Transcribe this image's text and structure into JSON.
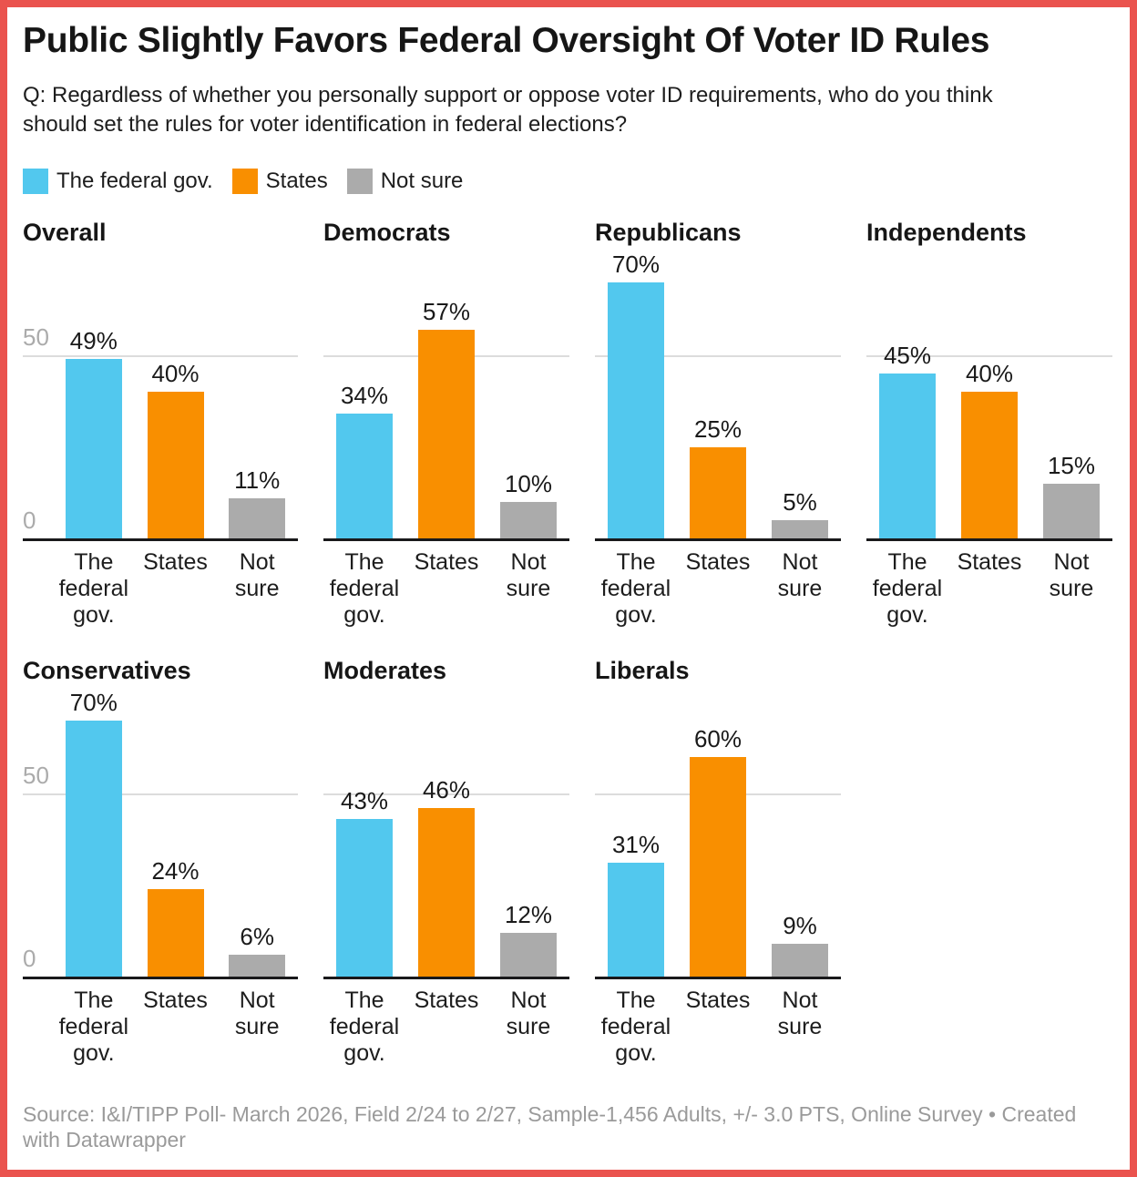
{
  "frame": {
    "border_color": "#ea534e",
    "background_color": "#ffffff"
  },
  "header": {
    "title": "Public Slightly Favors Federal Oversight Of Voter ID Rules",
    "subtitle": "Q: Regardless of whether you personally support or oppose voter ID requirements, who do you think should set the rules for voter identification in federal elections?"
  },
  "legend": {
    "items": [
      {
        "label": "The federal gov.",
        "color": "#52c8ee"
      },
      {
        "label": "States",
        "color": "#f98f00"
      },
      {
        "label": "Not sure",
        "color": "#ababab"
      }
    ]
  },
  "chart_data": {
    "type": "bar",
    "layout": "small-multiples",
    "categories": [
      "The federal gov.",
      "States",
      "Not sure"
    ],
    "category_labels_wrapped": [
      "The\nfederal\ngov.",
      "States",
      "Not\nsure"
    ],
    "colors": [
      "#52c8ee",
      "#f98f00",
      "#ababab"
    ],
    "value_suffix": "%",
    "ylim": [
      0,
      70
    ],
    "yticks": [
      {
        "value": 0,
        "label": "0"
      },
      {
        "value": 50,
        "label": "50"
      }
    ],
    "grid": "light gridline at 50 only; solid black baseline at 0; y tick labels shown on first column panels only",
    "panels": [
      {
        "title": "Overall",
        "values": [
          49,
          40,
          11
        ],
        "show_axis": true
      },
      {
        "title": "Democrats",
        "values": [
          34,
          57,
          10
        ],
        "show_axis": false
      },
      {
        "title": "Republicans",
        "values": [
          70,
          25,
          5
        ],
        "show_axis": false
      },
      {
        "title": "Independents",
        "values": [
          45,
          40,
          15
        ],
        "show_axis": false
      },
      {
        "title": "Conservatives",
        "values": [
          70,
          24,
          6
        ],
        "show_axis": true
      },
      {
        "title": "Moderates",
        "values": [
          43,
          46,
          12
        ],
        "show_axis": false
      },
      {
        "title": "Liberals",
        "values": [
          31,
          60,
          9
        ],
        "show_axis": false
      }
    ]
  },
  "footer": {
    "source": "Source: I&I/TIPP Poll- March 2026, Field 2/24 to 2/27, Sample-1,456 Adults, +/- 3.0 PTS, Online Survey  • Created with Datawrapper"
  }
}
